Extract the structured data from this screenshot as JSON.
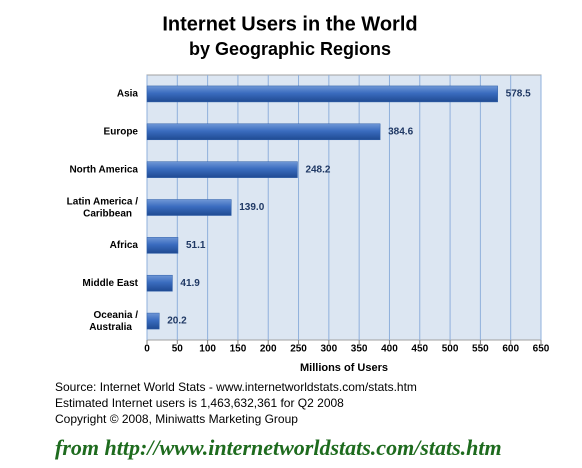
{
  "chart_data": {
    "type": "bar",
    "orientation": "horizontal",
    "title": "Internet Users in the World",
    "subtitle": "by Geographic Regions",
    "categories": [
      "Asia",
      "Europe",
      "North America",
      "Latin America /\nCaribbean",
      "Africa",
      "Middle East",
      "Oceania  /\nAustralia"
    ],
    "values": [
      578.5,
      384.6,
      248.2,
      139.0,
      51.1,
      41.9,
      20.2
    ],
    "value_labels": [
      "578.5",
      "384.6",
      "248.2",
      "139.0",
      "51.1",
      "41.9",
      "20.2"
    ],
    "color": "#2e5ea8",
    "xlim": [
      0,
      650
    ],
    "xticks": [
      0,
      50,
      100,
      150,
      200,
      250,
      300,
      350,
      400,
      450,
      500,
      550,
      600,
      650
    ],
    "x_label": "Millions of Users",
    "grid": true,
    "notes": [
      "Source: Internet World Stats - www.internetworldstats.com/stats.htm",
      "Estimated Internet users is 1,463,632,361 for Q2 2008",
      "Copyright © 2008, Miniwatts Marketing Group"
    ],
    "footer": "from http://www.internetworldstats.com/stats.htm"
  }
}
